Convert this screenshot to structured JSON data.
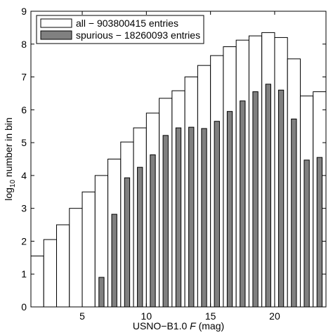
{
  "chart_data": {
    "type": "bar",
    "title": "",
    "xlabel_prefix": "USNO−B1.0 ",
    "xlabel_var": "F",
    "xlabel_suffix": " (mag)",
    "ylabel_pre": "log",
    "ylabel_sub": "10",
    "ylabel_post": " number in bin",
    "xlim": [
      1,
      24
    ],
    "ylim": [
      0,
      9
    ],
    "xticks": [
      5,
      10,
      15,
      20
    ],
    "yticks": [
      0,
      1,
      2,
      3,
      4,
      5,
      6,
      7,
      8,
      9
    ],
    "grid": false,
    "legend_position": "top-left",
    "series": [
      {
        "name": "all − 903800415 entries",
        "color": "#ffffff",
        "x": [
          1.5,
          2.5,
          3.5,
          4.5,
          5.5,
          6.5,
          7.5,
          8.5,
          9.5,
          10.5,
          11.5,
          12.5,
          13.5,
          14.5,
          15.5,
          16.5,
          17.5,
          18.5,
          19.5,
          20.5,
          21.5,
          22.5,
          23.5
        ],
        "values": [
          1.55,
          2.05,
          2.5,
          3.0,
          3.5,
          4.0,
          4.5,
          5.02,
          5.45,
          5.9,
          6.35,
          6.58,
          7.0,
          7.35,
          7.65,
          7.92,
          8.12,
          8.25,
          8.35,
          8.2,
          7.55,
          6.42,
          6.55
        ]
      },
      {
        "name": "spurious − 18260093 entries",
        "color": "#808080",
        "x": [
          6.5,
          7.5,
          8.5,
          9.5,
          10.5,
          11.5,
          12.5,
          13.5,
          14.5,
          15.5,
          16.5,
          17.5,
          18.5,
          19.5,
          20.5,
          21.5,
          22.5,
          23.5
        ],
        "values": [
          0.9,
          2.82,
          3.93,
          4.25,
          4.63,
          5.22,
          5.45,
          5.47,
          5.43,
          5.65,
          5.95,
          6.27,
          6.55,
          6.78,
          6.6,
          5.72,
          4.47,
          4.55
        ]
      }
    ]
  }
}
